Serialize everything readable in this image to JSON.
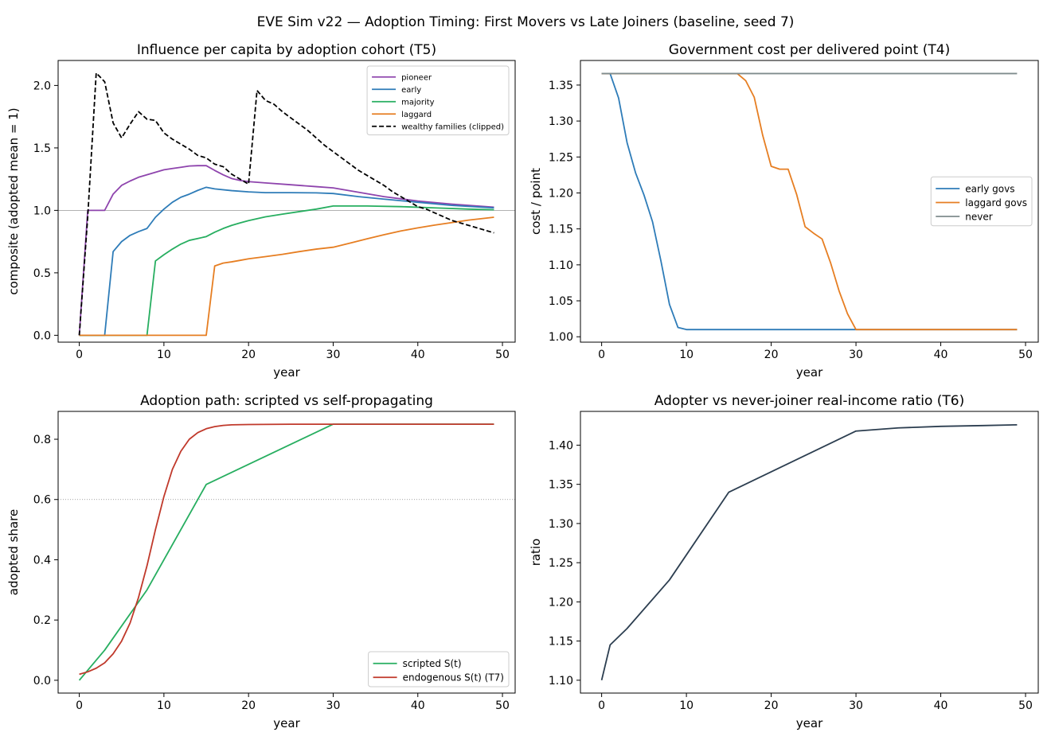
{
  "figure": {
    "suptitle": "EVE Sim v22 — Adoption Timing: First Movers vs Late Joiners (baseline, seed 7)"
  },
  "chart_data": [
    {
      "id": "influence",
      "type": "line",
      "title": "Influence per capita by adoption cohort (T5)",
      "xlabel": "year",
      "ylabel": "composite (adopted mean = 1)",
      "xlim": [
        -2.5,
        51.5
      ],
      "ylim": [
        -0.055,
        2.2
      ],
      "xticks": [
        0,
        10,
        20,
        30,
        40,
        50
      ],
      "yticks": [
        0.0,
        0.5,
        1.0,
        1.5,
        2.0
      ],
      "ytick_labels": [
        "0.0",
        "0.5",
        "1.0",
        "1.5",
        "2.0"
      ],
      "hlines": [
        {
          "y": 1.0,
          "color": "#999999",
          "style": "solid"
        }
      ],
      "legend": {
        "position": "top-right",
        "font_size": 10
      },
      "series": [
        {
          "name": "pioneer",
          "color": "#8e44ad",
          "style": "solid",
          "x": [
            0,
            1,
            3,
            4,
            5,
            6,
            7,
            8,
            9,
            10,
            11,
            12,
            13,
            14,
            15,
            16,
            17,
            18,
            19,
            20,
            22,
            25,
            28,
            30,
            33,
            36,
            40,
            44,
            49
          ],
          "y": [
            0.0,
            1.0,
            1.0,
            1.13,
            1.2,
            1.235,
            1.265,
            1.285,
            1.305,
            1.325,
            1.335,
            1.345,
            1.355,
            1.358,
            1.358,
            1.32,
            1.285,
            1.255,
            1.24,
            1.23,
            1.22,
            1.205,
            1.19,
            1.18,
            1.145,
            1.11,
            1.075,
            1.05,
            1.025
          ]
        },
        {
          "name": "early",
          "color": "#2e7cb8",
          "style": "solid",
          "x": [
            0,
            3,
            4,
            5,
            6,
            7,
            8,
            9,
            10,
            11,
            12,
            13,
            14,
            15,
            16,
            18,
            20,
            22,
            25,
            28,
            30,
            33,
            36,
            40,
            44,
            49
          ],
          "y": [
            0.0,
            0.0,
            0.67,
            0.75,
            0.8,
            0.83,
            0.855,
            0.945,
            1.01,
            1.065,
            1.105,
            1.13,
            1.16,
            1.185,
            1.172,
            1.158,
            1.148,
            1.142,
            1.142,
            1.14,
            1.135,
            1.11,
            1.09,
            1.065,
            1.04,
            1.02
          ]
        },
        {
          "name": "majority",
          "color": "#27ae60",
          "style": "solid",
          "x": [
            0,
            8,
            9,
            10,
            11,
            12,
            13,
            14,
            15,
            16,
            17,
            18,
            19,
            20,
            22,
            24,
            26,
            28,
            30,
            34,
            38,
            42,
            46,
            49
          ],
          "y": [
            0.0,
            0.0,
            0.595,
            0.645,
            0.69,
            0.73,
            0.76,
            0.775,
            0.79,
            0.825,
            0.855,
            0.88,
            0.9,
            0.918,
            0.948,
            0.97,
            0.99,
            1.01,
            1.035,
            1.035,
            1.03,
            1.02,
            1.01,
            1.005
          ]
        },
        {
          "name": "laggard",
          "color": "#e67e22",
          "style": "solid",
          "x": [
            0,
            15,
            16,
            17,
            18,
            19,
            20,
            22,
            24,
            26,
            28,
            30,
            32,
            34,
            36,
            38,
            40,
            42,
            44,
            46,
            49
          ],
          "y": [
            0.0,
            0.0,
            0.555,
            0.578,
            0.588,
            0.6,
            0.612,
            0.63,
            0.648,
            0.67,
            0.69,
            0.705,
            0.738,
            0.772,
            0.805,
            0.835,
            0.86,
            0.882,
            0.902,
            0.922,
            0.945
          ]
        },
        {
          "name": "wealthy families (clipped)",
          "color": "#000000",
          "style": "dashed",
          "x": [
            0,
            1,
            2,
            3,
            4,
            5,
            6,
            7,
            8,
            9,
            10,
            11,
            12,
            13,
            14,
            15,
            16,
            17,
            18,
            19,
            20,
            21,
            22,
            23,
            24,
            25,
            26,
            27,
            28,
            29,
            30,
            31,
            32,
            33,
            34,
            35,
            36,
            37,
            38,
            39,
            40,
            41,
            42,
            43,
            44,
            45,
            46,
            47,
            48,
            49
          ],
          "y": [
            0.0,
            0.95,
            2.1,
            2.03,
            1.7,
            1.58,
            1.69,
            1.79,
            1.73,
            1.72,
            1.62,
            1.57,
            1.53,
            1.49,
            1.44,
            1.42,
            1.37,
            1.35,
            1.29,
            1.25,
            1.21,
            1.96,
            1.88,
            1.85,
            1.79,
            1.74,
            1.69,
            1.64,
            1.58,
            1.52,
            1.47,
            1.42,
            1.37,
            1.32,
            1.28,
            1.24,
            1.2,
            1.15,
            1.11,
            1.07,
            1.03,
            1.01,
            0.98,
            0.95,
            0.92,
            0.9,
            0.88,
            0.86,
            0.84,
            0.82
          ]
        }
      ]
    },
    {
      "id": "govcost",
      "type": "line",
      "title": "Government cost per delivered point (T4)",
      "xlabel": "year",
      "ylabel": "cost / point",
      "xlim": [
        -2.5,
        51.5
      ],
      "ylim": [
        0.9925,
        1.3842
      ],
      "xticks": [
        0,
        10,
        20,
        30,
        40,
        50
      ],
      "yticks": [
        1.0,
        1.05,
        1.1,
        1.15,
        1.2,
        1.25,
        1.3,
        1.35
      ],
      "ytick_labels": [
        "1.00",
        "1.05",
        "1.10",
        "1.15",
        "1.20",
        "1.25",
        "1.30",
        "1.35"
      ],
      "legend": {
        "position": "center-right",
        "font_size": 12
      },
      "series": [
        {
          "name": "early govs",
          "color": "#2e7cb8",
          "style": "solid",
          "x": [
            0,
            1,
            2,
            3,
            4,
            5,
            6,
            7,
            8,
            9,
            10,
            15,
            20,
            25,
            30,
            35,
            40,
            45,
            49
          ],
          "y": [
            1.366,
            1.366,
            1.332,
            1.27,
            1.228,
            1.197,
            1.16,
            1.105,
            1.045,
            1.013,
            1.01,
            1.01,
            1.01,
            1.01,
            1.01,
            1.01,
            1.01,
            1.01,
            1.01
          ]
        },
        {
          "name": "laggard govs",
          "color": "#e67e22",
          "style": "solid",
          "x": [
            0,
            16,
            17,
            18,
            19,
            20,
            21,
            22,
            23,
            24,
            25,
            26,
            27,
            28,
            29,
            30,
            35,
            40,
            45,
            49
          ],
          "y": [
            1.366,
            1.366,
            1.356,
            1.333,
            1.28,
            1.237,
            1.233,
            1.233,
            1.198,
            1.153,
            1.144,
            1.136,
            1.103,
            1.064,
            1.032,
            1.01,
            1.01,
            1.01,
            1.01,
            1.01
          ]
        },
        {
          "name": "never",
          "color": "#7f8c8d",
          "style": "solid",
          "x": [
            0,
            49
          ],
          "y": [
            1.366,
            1.366
          ]
        }
      ]
    },
    {
      "id": "adoption",
      "type": "line",
      "title": "Adoption path: scripted vs self-propagating",
      "xlabel": "year",
      "ylabel": "adopted share",
      "xlim": [
        -2.5,
        51.5
      ],
      "ylim": [
        -0.0425,
        0.8925
      ],
      "xticks": [
        0,
        10,
        20,
        30,
        40,
        50
      ],
      "yticks": [
        0.0,
        0.2,
        0.4,
        0.6,
        0.8
      ],
      "ytick_labels": [
        "0.0",
        "0.2",
        "0.4",
        "0.6",
        "0.8"
      ],
      "hlines": [
        {
          "y": 0.6,
          "color": "#888888",
          "style": "dotted"
        }
      ],
      "legend": {
        "position": "bottom-right",
        "font_size": 12
      },
      "series": [
        {
          "name": "scripted S(t)",
          "color": "#27ae60",
          "style": "solid",
          "x": [
            0,
            3,
            8,
            15,
            30,
            49
          ],
          "y": [
            0.0,
            0.1,
            0.3,
            0.65,
            0.85,
            0.85
          ]
        },
        {
          "name": "endogenous S(t) (T7)",
          "color": "#c0392b",
          "style": "solid",
          "x": [
            0,
            1,
            2,
            3,
            4,
            5,
            6,
            7,
            8,
            9,
            10,
            11,
            12,
            13,
            14,
            15,
            16,
            17,
            18,
            20,
            25,
            30,
            40,
            49
          ],
          "y": [
            0.02,
            0.028,
            0.04,
            0.058,
            0.088,
            0.13,
            0.19,
            0.275,
            0.38,
            0.5,
            0.61,
            0.7,
            0.76,
            0.8,
            0.822,
            0.835,
            0.842,
            0.846,
            0.848,
            0.849,
            0.85,
            0.85,
            0.85,
            0.85
          ]
        }
      ]
    },
    {
      "id": "ratio",
      "type": "line",
      "title": "Adopter vs never-joiner real-income ratio (T6)",
      "xlabel": "year",
      "ylabel": "ratio",
      "xlim": [
        -2.5,
        51.5
      ],
      "ylim": [
        1.0836,
        1.4431
      ],
      "xticks": [
        0,
        10,
        20,
        30,
        40,
        50
      ],
      "yticks": [
        1.1,
        1.15,
        1.2,
        1.25,
        1.3,
        1.35,
        1.4
      ],
      "ytick_labels": [
        "1.10",
        "1.15",
        "1.20",
        "1.25",
        "1.30",
        "1.35",
        "1.40"
      ],
      "series": [
        {
          "color": "#2c3e50",
          "style": "solid",
          "x": [
            0,
            1,
            3,
            8,
            15,
            30,
            35,
            40,
            45,
            49
          ],
          "y": [
            1.1,
            1.145,
            1.166,
            1.228,
            1.34,
            1.418,
            1.422,
            1.424,
            1.425,
            1.426
          ]
        }
      ]
    }
  ]
}
